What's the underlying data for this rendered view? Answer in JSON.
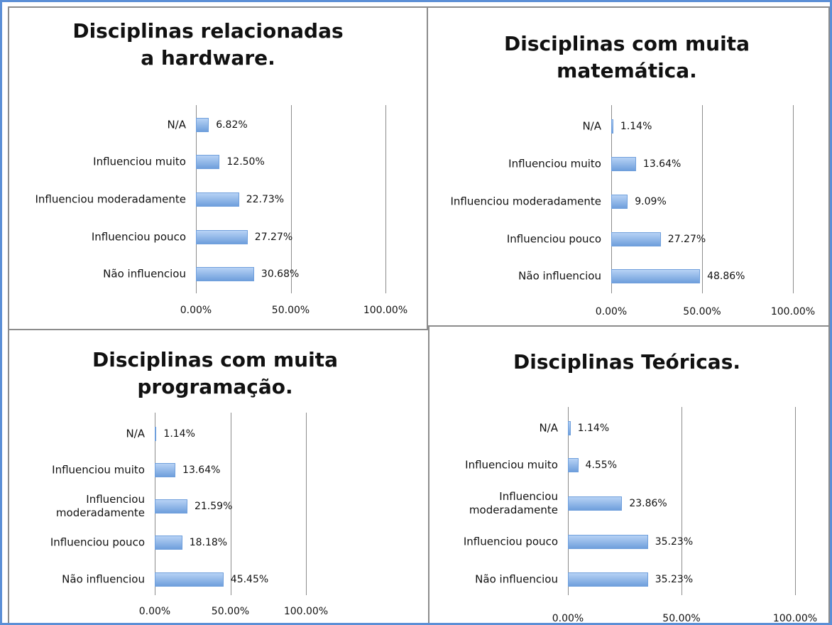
{
  "chart_data": [
    {
      "type": "bar",
      "orientation": "horizontal",
      "title": "Disciplinas relacionadas a hardware.",
      "categories": [
        "N/A",
        "Influenciou muito",
        "Influenciou moderadamente",
        "Influenciou pouco",
        "Não influenciou"
      ],
      "values": [
        6.82,
        12.5,
        22.73,
        27.27,
        30.68
      ],
      "value_labels": [
        "6.82%",
        "12.50%",
        "22.73%",
        "27.27%",
        "30.68%"
      ],
      "xlim": [
        0,
        100
      ],
      "xticks": [
        {
          "value": 0,
          "label": "0.00%"
        },
        {
          "value": 50,
          "label": "50.00%"
        },
        {
          "value": 100,
          "label": "100.00%"
        }
      ],
      "grid": true,
      "color": "#6f9fdc"
    },
    {
      "type": "bar",
      "orientation": "horizontal",
      "title": "Disciplinas com muita matemática.",
      "categories": [
        "N/A",
        "Influenciou muito",
        "Influenciou moderadamente",
        "Influenciou pouco",
        "Não influenciou"
      ],
      "values": [
        1.14,
        13.64,
        9.09,
        27.27,
        48.86
      ],
      "value_labels": [
        "1.14%",
        "13.64%",
        "9.09%",
        "27.27%",
        "48.86%"
      ],
      "xlim": [
        0,
        100
      ],
      "xticks": [
        {
          "value": 0,
          "label": "0.00%"
        },
        {
          "value": 50,
          "label": "50.00%"
        },
        {
          "value": 100,
          "label": "100.00%"
        }
      ],
      "grid": true,
      "color": "#6f9fdc"
    },
    {
      "type": "bar",
      "orientation": "horizontal",
      "title": "Disciplinas com muita programação.",
      "categories": [
        "N/A",
        "Influenciou muito",
        "Influenciou moderadamente",
        "Influenciou pouco",
        "Não influenciou"
      ],
      "values": [
        1.14,
        13.64,
        21.59,
        18.18,
        45.45
      ],
      "value_labels": [
        "1.14%",
        "13.64%",
        "21.59%",
        "18.18%",
        "45.45%"
      ],
      "xlim": [
        0,
        100
      ],
      "xticks": [
        {
          "value": 0,
          "label": "0.00%"
        },
        {
          "value": 50,
          "label": "50.00%"
        },
        {
          "value": 100,
          "label": "100.00%"
        }
      ],
      "grid": true,
      "color": "#6f9fdc"
    },
    {
      "type": "bar",
      "orientation": "horizontal",
      "title": "Disciplinas Teóricas.",
      "categories": [
        "N/A",
        "Influenciou muito",
        "Influenciou moderadamente",
        "Influenciou pouco",
        "Não influenciou"
      ],
      "values": [
        1.14,
        4.55,
        23.86,
        35.23,
        35.23
      ],
      "value_labels": [
        "1.14%",
        "4.55%",
        "23.86%",
        "35.23%",
        "35.23%"
      ],
      "xlim": [
        0,
        100
      ],
      "xticks": [
        {
          "value": 0,
          "label": "0.00%"
        },
        {
          "value": 50,
          "label": "50.00%"
        },
        {
          "value": 100,
          "label": "100.00%"
        }
      ],
      "grid": true,
      "color": "#6f9fdc"
    }
  ]
}
